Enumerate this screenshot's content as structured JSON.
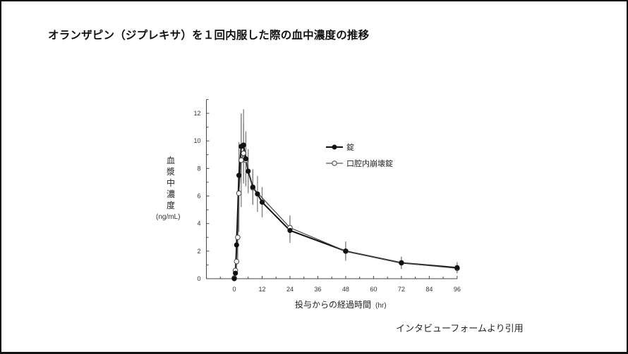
{
  "slide": {
    "title": "オランザピン（ジプレキサ）を１回内服した際の血中濃度の推移",
    "citation": "インタビューフォームより引用"
  },
  "chart_data": {
    "type": "line",
    "title": "オランザピン（ジプレキサ）を１回内服した際の血中濃度の推移",
    "xlabel": "投与からの経過時間",
    "xlabel_unit": "(hr)",
    "ylabel": "血漿中濃度",
    "ylabel_unit": "(ng/mL)",
    "xlim": [
      -12,
      96
    ],
    "ylim": [
      0,
      13
    ],
    "x_ticks": [
      0,
      12,
      24,
      36,
      48,
      60,
      72,
      84,
      96
    ],
    "y_ticks": [
      0,
      2,
      4,
      6,
      8,
      10,
      12
    ],
    "grid": false,
    "legend_position": "upper right (inside)",
    "series": [
      {
        "name": "錠",
        "marker": "filled-circle",
        "x": [
          0,
          0.5,
          1,
          2,
          3,
          4,
          5,
          6,
          8,
          10,
          12,
          24,
          48,
          72,
          96
        ],
        "values": [
          0,
          0.4,
          2.45,
          7.5,
          9.6,
          9.7,
          8.7,
          7.8,
          6.65,
          6.15,
          5.55,
          3.5,
          2.0,
          1.15,
          0.8
        ],
        "error": [
          0,
          0.3,
          1.0,
          2.4,
          2.3,
          2.6,
          2.0,
          1.6,
          1.3,
          1.3,
          1.1,
          0.9,
          0.7,
          0.45,
          0.4
        ]
      },
      {
        "name": "口腔内崩壊錠",
        "marker": "open-circle",
        "x": [
          0,
          0.5,
          1,
          1.5,
          2,
          3,
          4,
          5,
          8,
          24,
          48,
          72,
          96
        ],
        "values": [
          0.05,
          0.6,
          1.25,
          3.0,
          6.2,
          8.6,
          9.1,
          8.6,
          6.6,
          3.7,
          2.0,
          1.15,
          0.75
        ],
        "error": [
          0,
          0.4,
          0.8,
          1.9,
          2.8,
          3.4,
          2.2,
          1.8,
          1.2,
          0.9,
          0.6,
          0.4,
          0.35
        ]
      }
    ]
  },
  "colors": {
    "line": "#111111",
    "error_bar": "#777777",
    "axis": "#444444",
    "frame": "#111111"
  }
}
